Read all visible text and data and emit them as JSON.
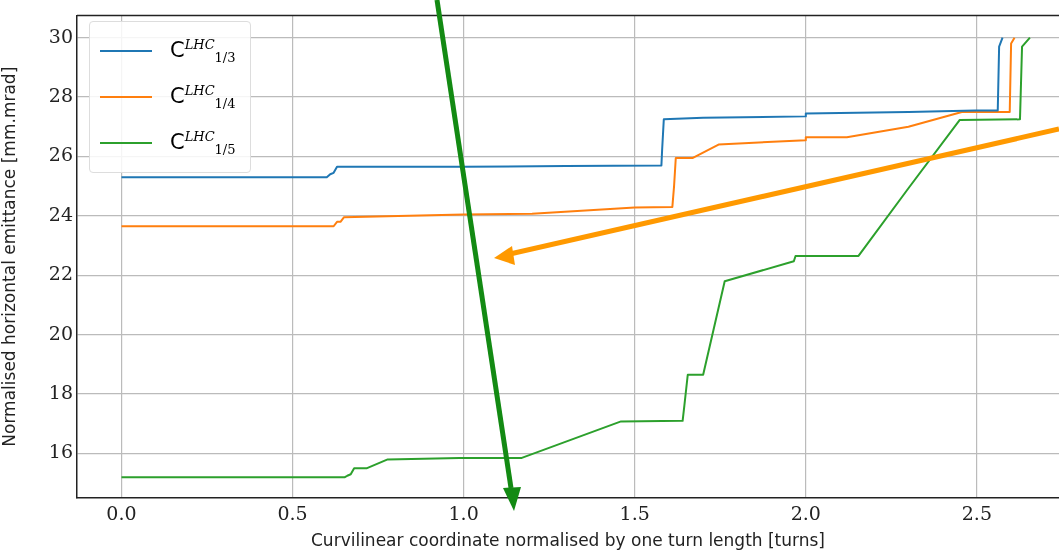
{
  "chart_data": {
    "type": "line",
    "xlabel": "Curvilinear coordinate normalised by one turn length [turns]",
    "ylabel": "Normalised horizontal emittance [mm.mrad]",
    "xlim": [
      -0.13,
      2.74
    ],
    "ylim": [
      14.5,
      30.75
    ],
    "xticks": [
      {
        "value": 0,
        "label": "0.0"
      },
      {
        "value": 0.5,
        "label": "0.5"
      },
      {
        "value": 1,
        "label": "1.0"
      },
      {
        "value": 1.5,
        "label": "1.5"
      },
      {
        "value": 2,
        "label": "2.0"
      },
      {
        "value": 2.5,
        "label": "2.5"
      }
    ],
    "yticks": [
      16,
      18,
      20,
      22,
      24,
      26,
      28,
      30
    ],
    "grid": true,
    "legend": "top left",
    "line_style": "solid",
    "marker": "none",
    "series": [
      {
        "name": "C$^{LHC}$$_{1/3}$",
        "color": "#1f77b4",
        "x": [
          0,
          0.6,
          0.61,
          0.62,
          0.63,
          1.0,
          1.3,
          1.578,
          1.58,
          1.585,
          1.7,
          2.0,
          2.0,
          2.3,
          2.495,
          2.561,
          2.565,
          2.575
        ],
        "values": [
          25.3,
          25.3,
          25.4,
          25.45,
          25.65,
          25.65,
          25.68,
          25.7,
          26.2,
          27.25,
          27.3,
          27.35,
          27.45,
          27.5,
          27.55,
          27.55,
          29.7,
          30
        ]
      },
      {
        "name": "C$^{LHC}$$_{1/4}$",
        "color": "#ff7f0e",
        "x": [
          0,
          0.62,
          0.63,
          0.64,
          0.65,
          1.0,
          1.2,
          1.5,
          1.61,
          1.615,
          1.62,
          1.67,
          1.745,
          2.0,
          2.0,
          2.12,
          2.3,
          2.456,
          2.596,
          2.6,
          2.61
        ],
        "values": [
          23.65,
          23.65,
          23.8,
          23.8,
          23.95,
          24.05,
          24.07,
          24.28,
          24.3,
          25.0,
          25.95,
          25.95,
          26.4,
          26.55,
          26.65,
          26.65,
          27.0,
          27.5,
          27.5,
          29.8,
          30
        ]
      },
      {
        "name": "C$^{LHC}$$_{1/5}$",
        "color": "#2ca02c",
        "x": [
          0,
          0.653,
          0.66,
          0.67,
          0.68,
          0.716,
          0.778,
          0.987,
          1.17,
          1.46,
          1.64,
          1.645,
          1.655,
          1.7,
          1.763,
          1.965,
          1.97,
          2.154,
          2.3,
          2.45,
          2.626,
          2.632,
          2.655
        ],
        "values": [
          15.2,
          15.2,
          15.25,
          15.3,
          15.5,
          15.5,
          15.8,
          15.85,
          15.85,
          17.08,
          17.1,
          17.6,
          18.65,
          18.65,
          21.8,
          22.47,
          22.65,
          22.65,
          24.93,
          27.23,
          27.25,
          29.7,
          30
        ]
      }
    ]
  }
}
